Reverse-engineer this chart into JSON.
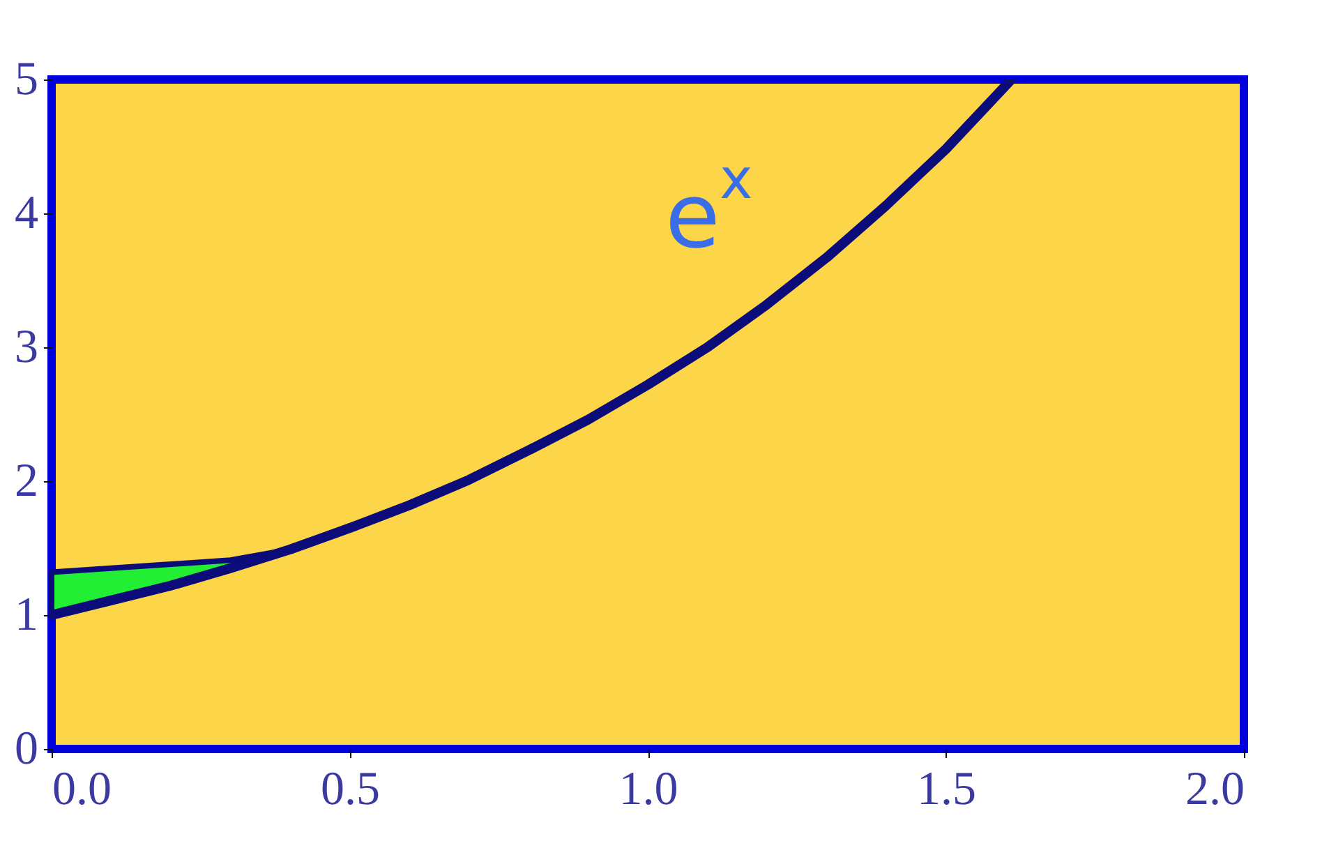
{
  "chart_data": {
    "type": "line",
    "series": [
      {
        "color": "#0b0b7a",
        "x": [
          0,
          0.1,
          0.2,
          0.3,
          0.4,
          0.5,
          0.6,
          0.7,
          0.8,
          0.9,
          1.0,
          1.1,
          1.2,
          1.3,
          1.4,
          1.5,
          1.61
        ],
        "values": [
          1.0,
          1.11,
          1.22,
          1.35,
          1.49,
          1.65,
          1.82,
          2.01,
          2.23,
          2.46,
          2.72,
          3.0,
          3.32,
          3.67,
          4.06,
          4.48,
          5.0
        ],
        "lower": [
          1.0,
          1.11,
          1.22,
          1.35,
          1.49,
          null,
          null,
          null,
          null,
          null,
          null,
          null,
          null,
          null,
          null,
          null,
          null
        ],
        "upper": [
          1.32,
          1.35,
          1.38,
          1.41,
          1.49,
          null,
          null,
          null,
          null,
          null,
          null,
          null,
          null,
          null,
          null,
          null,
          null
        ]
      }
    ],
    "xlim": [
      0,
      2
    ],
    "ylim": [
      0,
      5
    ],
    "xticks": [
      {
        "value": 0,
        "label": "0.0"
      },
      0.5,
      {
        "value": 1,
        "label": "1.0"
      },
      1.5,
      {
        "value": 2,
        "label": "2.0"
      }
    ],
    "yticks": [
      0,
      1,
      2,
      3,
      4,
      5
    ],
    "annotations": [
      {
        "text": "e$^{x}$",
        "x": 1.38,
        "y": 3.95
      }
    ],
    "grid": false,
    "marker": "none",
    "line_style": "solid"
  }
}
